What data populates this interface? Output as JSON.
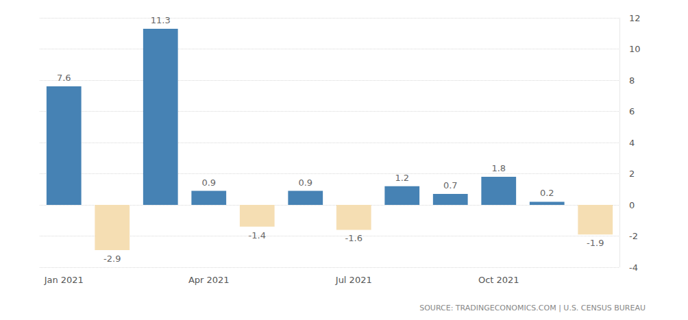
{
  "chart_data": {
    "type": "bar",
    "categories": [
      "Jan 2021",
      null,
      null,
      "Apr 2021",
      null,
      null,
      "Jul 2021",
      null,
      null,
      "Oct 2021",
      null,
      null
    ],
    "values": [
      7.6,
      -2.9,
      11.3,
      0.9,
      -1.4,
      0.9,
      -1.6,
      1.2,
      0.7,
      1.8,
      0.2,
      -1.9
    ],
    "colors": [
      "#4682b4",
      "#f5deb3",
      "#4682b4",
      "#4682b4",
      "#f5deb3",
      "#4682b4",
      "#f5deb3",
      "#4682b4",
      "#4682b4",
      "#4682b4",
      "#4682b4",
      "#f5deb3"
    ],
    "ylim": [
      -4,
      12
    ],
    "yticks": [
      -4,
      -2,
      0,
      2,
      4,
      6,
      8,
      10,
      12
    ],
    "grid": true,
    "data_labels": true,
    "annotations": [
      "SOURCE: TRADINGECONOMICS.COM | U.S. CENSUS BUREAU"
    ]
  }
}
